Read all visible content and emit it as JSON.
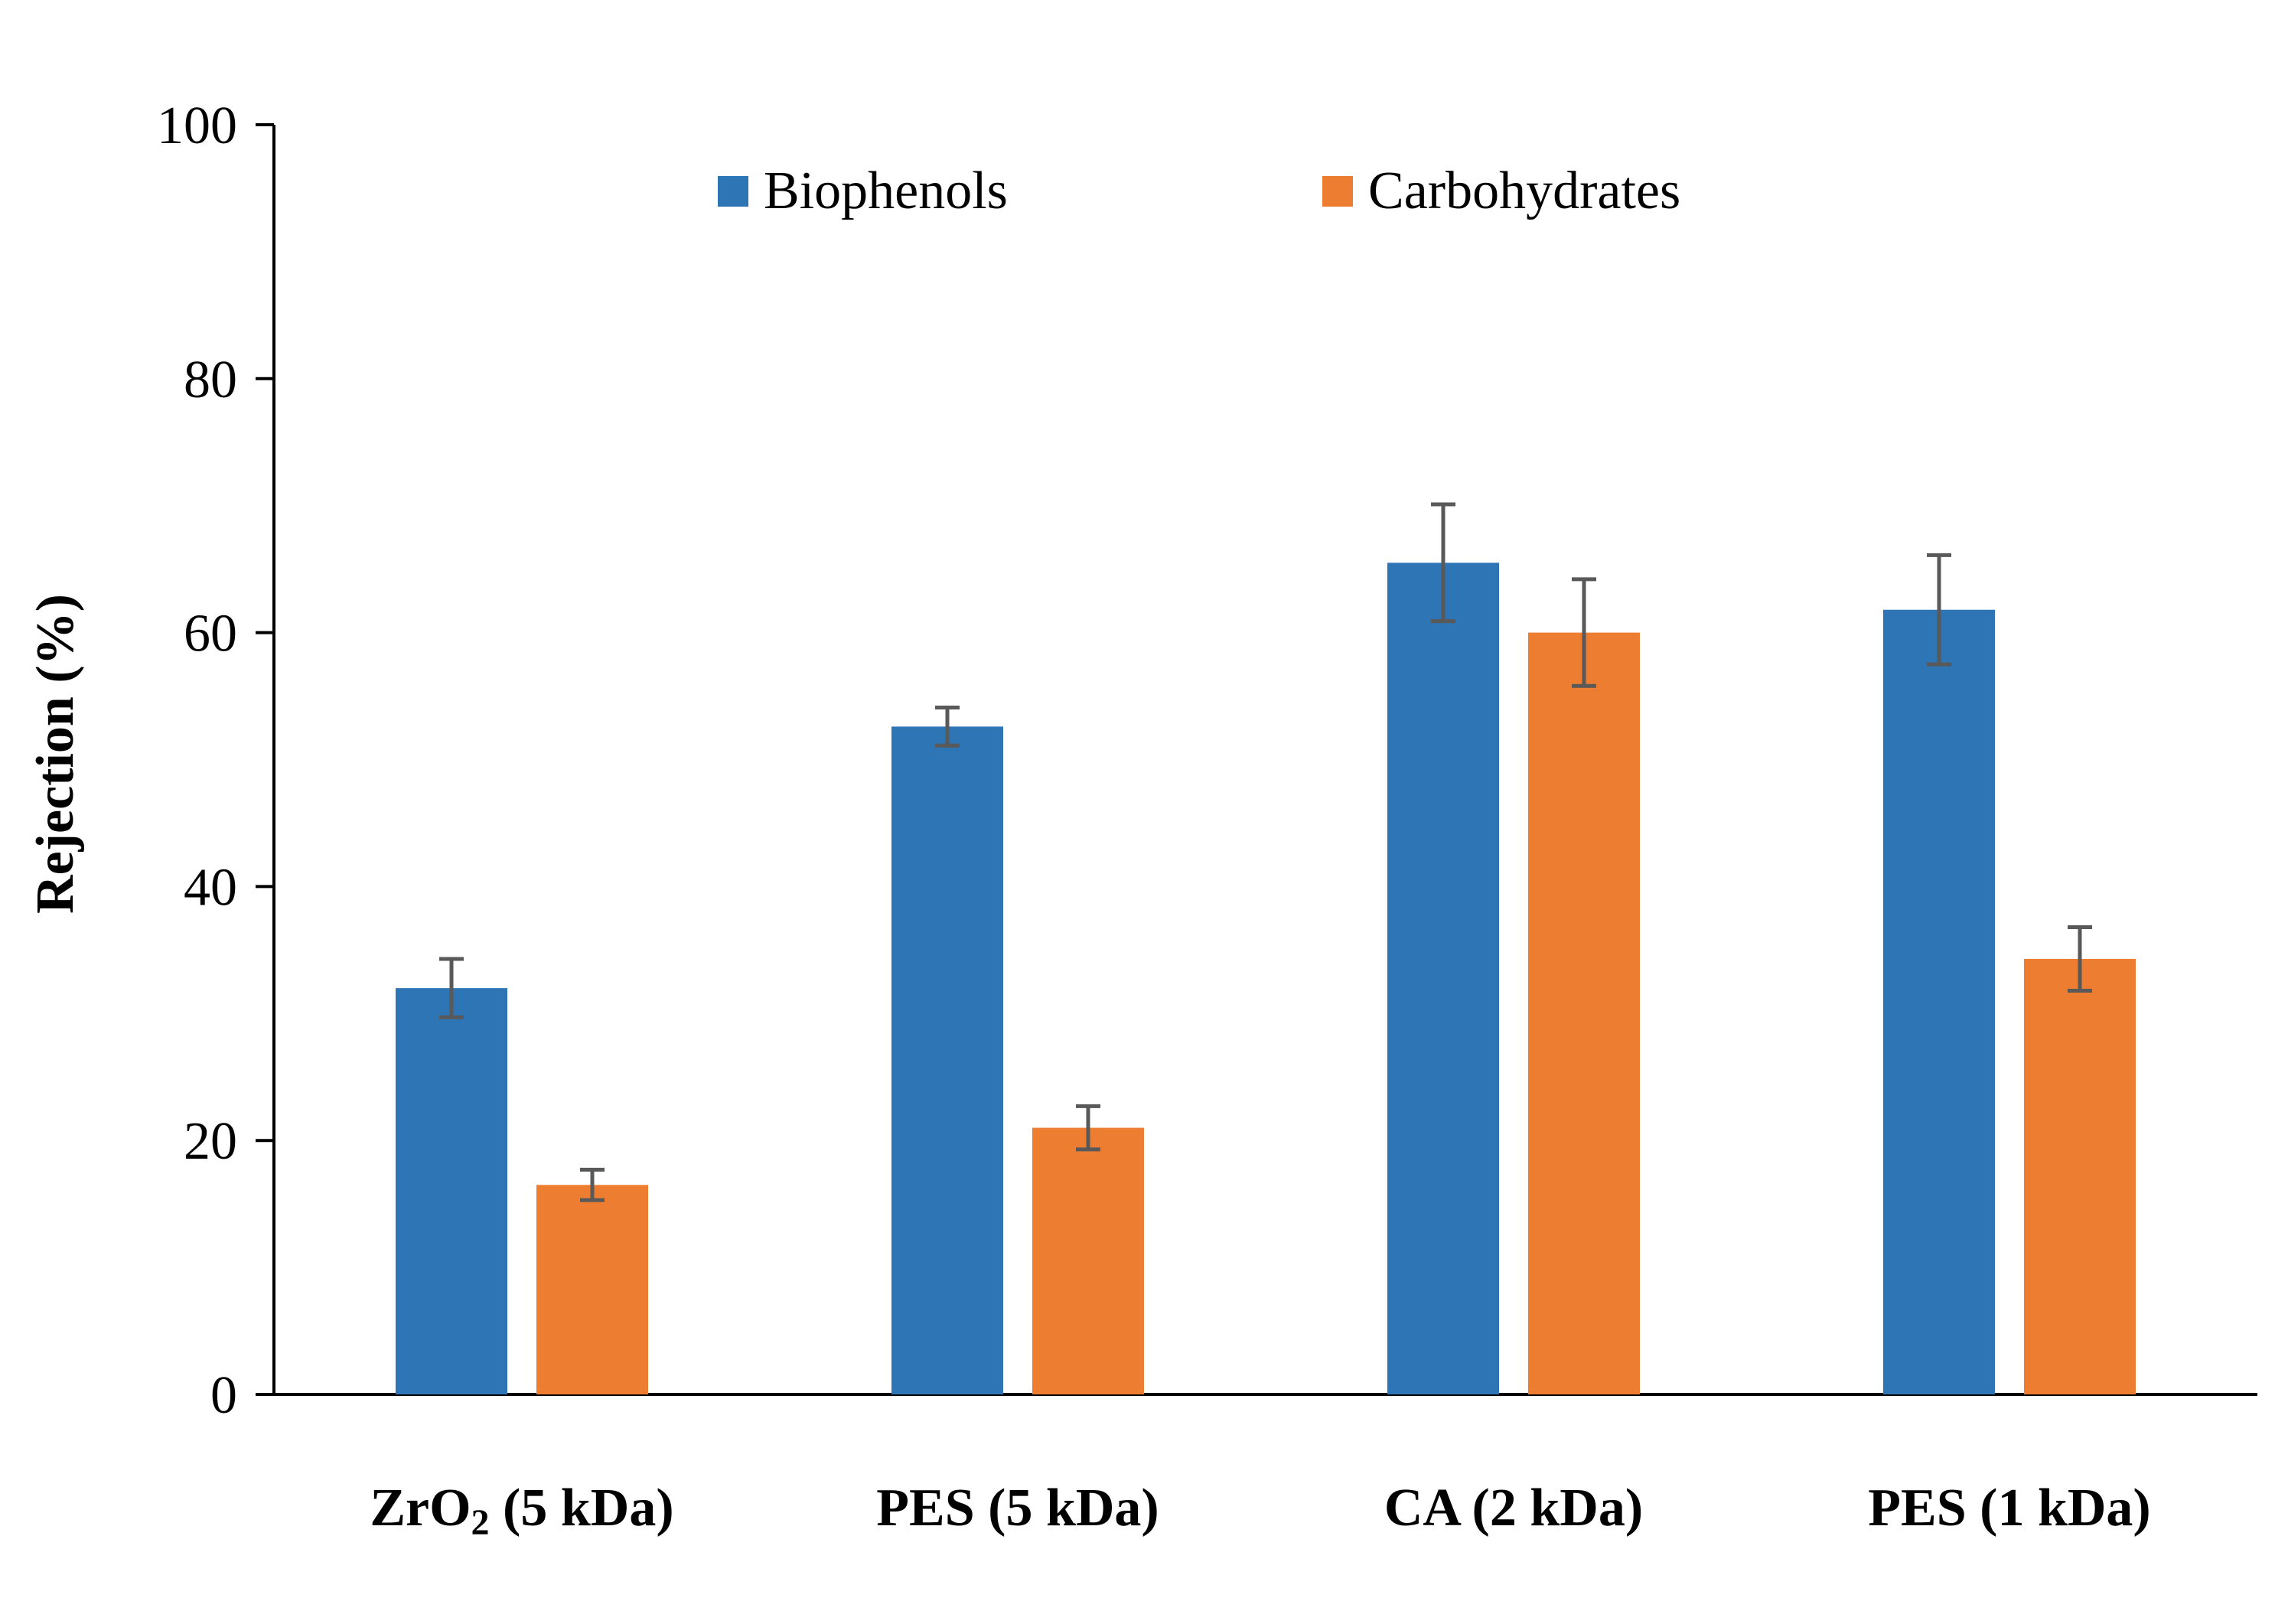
{
  "chart_data": {
    "type": "bar",
    "title": "",
    "xlabel": "",
    "ylabel": "Rejection (%)",
    "ylim": [
      0,
      100
    ],
    "yticks": [
      0,
      20,
      40,
      60,
      80,
      100
    ],
    "grid": false,
    "legend_position": "top",
    "categories": [
      "ZrO2 (5 kDa)",
      "PES (5 kDa)",
      "CA (2 kDa)",
      "PES (1 kDa)"
    ],
    "category_parts": [
      {
        "main": "ZrO",
        "sub": "2",
        "rest": " (5 kDa)"
      },
      {
        "main": "PES (5 kDa)",
        "sub": "",
        "rest": ""
      },
      {
        "main": "CA (2 kDa)",
        "sub": "",
        "rest": ""
      },
      {
        "main": "PES (1 kDa)",
        "sub": "",
        "rest": ""
      }
    ],
    "series": [
      {
        "name": "Biophenols",
        "color": "#2E75B6",
        "values": [
          32.0,
          52.6,
          65.5,
          61.8
        ],
        "errors": [
          2.3,
          1.5,
          4.6,
          4.3
        ]
      },
      {
        "name": "Carbohydrates",
        "color": "#ED7D31",
        "values": [
          16.5,
          21.0,
          60.0,
          34.3
        ],
        "errors": [
          1.2,
          1.7,
          4.2,
          2.5
        ]
      }
    ],
    "error_bar_color": "#595959"
  }
}
